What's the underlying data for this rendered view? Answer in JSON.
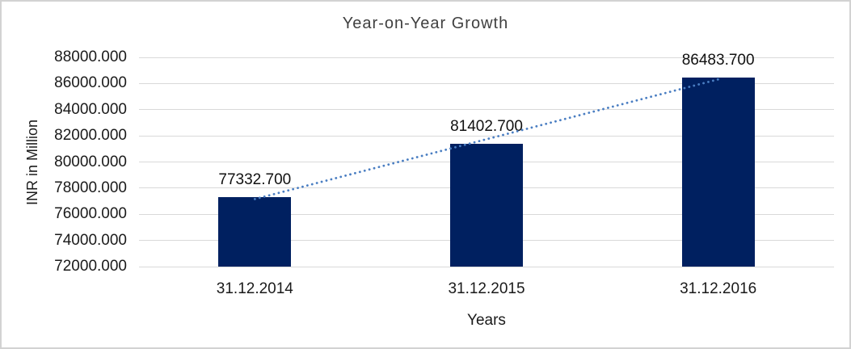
{
  "chart": {
    "title": "Year-on-Year Growth",
    "y_axis_title": "INR in Million",
    "x_axis_title": "Years"
  },
  "chart_data": {
    "type": "bar",
    "title": "Year-on-Year Growth",
    "xlabel": "Years",
    "ylabel": "INR in Million",
    "categories": [
      "31.12.2014",
      "31.12.2015",
      "31.12.2016"
    ],
    "values": [
      77332.7,
      81402.7,
      86483.7
    ],
    "data_labels": [
      "77332.700",
      "81402.700",
      "86483.700"
    ],
    "y_ticks": [
      "88000.000",
      "86000.000",
      "84000.000",
      "82000.000",
      "80000.000",
      "78000.000",
      "76000.000",
      "74000.000",
      "72000.000"
    ],
    "ylim": [
      72000,
      88000
    ],
    "grid": "horizontal",
    "legend": "none",
    "trendline": {
      "type": "linear",
      "style": "dotted"
    }
  },
  "colors": {
    "bar": "#002060",
    "trendline": "#4A7EC2",
    "gridline": "#d9d9d9",
    "frame_border": "#d2d2d2",
    "title_text": "#404040",
    "label_text": "#1a1a1a"
  }
}
